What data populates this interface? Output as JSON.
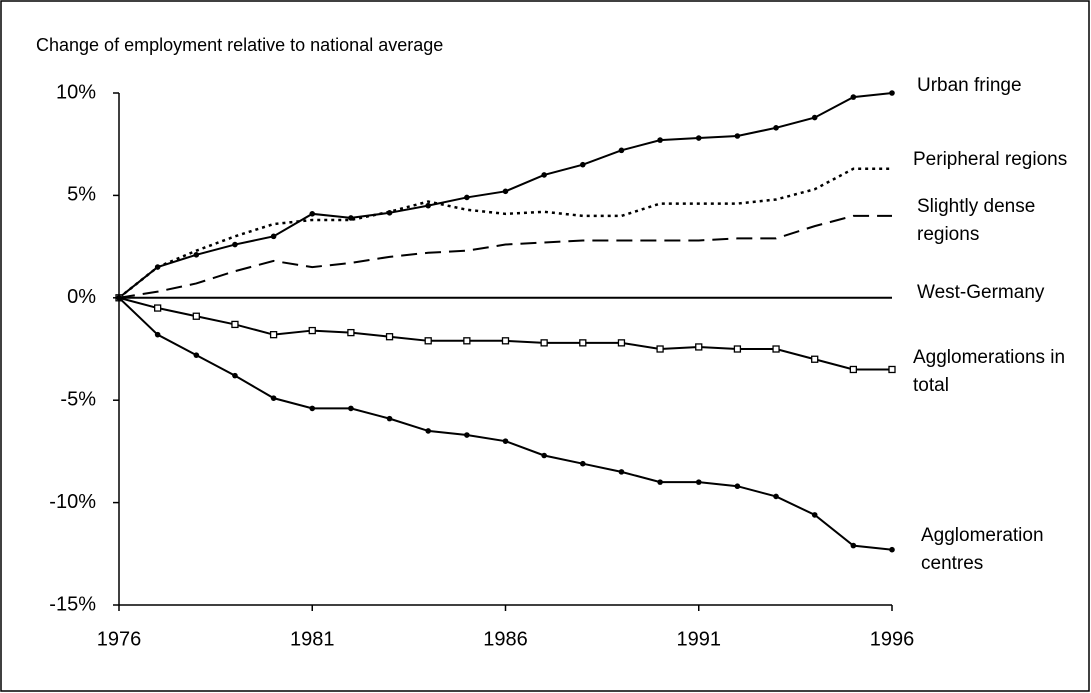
{
  "chart_data": {
    "type": "line",
    "y_label": "Change of employment relative to national average",
    "x": [
      1976,
      1977,
      1978,
      1979,
      1980,
      1981,
      1982,
      1983,
      1984,
      1985,
      1986,
      1987,
      1988,
      1989,
      1990,
      1991,
      1992,
      1993,
      1994,
      1995,
      1996
    ],
    "xlim": [
      1976,
      1996
    ],
    "xticks": [
      1976,
      1981,
      1986,
      1991,
      1996
    ],
    "ylim": [
      -15,
      10
    ],
    "yticks": [
      {
        "value": -15,
        "label": "-15%"
      },
      {
        "value": -10,
        "label": "-10%"
      },
      {
        "value": -5,
        "label": "-5%"
      },
      {
        "value": 0,
        "label": "0%"
      },
      {
        "value": 5,
        "label": "5%"
      },
      {
        "value": 10,
        "label": "10%"
      }
    ],
    "series": [
      {
        "name": "Urban fringe",
        "color": "#000000",
        "dash": "solid",
        "marker": "circle",
        "values": [
          0,
          1.5,
          2.1,
          2.6,
          3.0,
          4.1,
          3.9,
          4.15,
          4.5,
          4.9,
          5.2,
          6.0,
          6.5,
          7.2,
          7.7,
          7.8,
          7.9,
          8.3,
          8.8,
          9.8,
          10.0
        ]
      },
      {
        "name": "Peripheral regions",
        "color": "#000000",
        "dash": "dotted",
        "marker": "none",
        "values": [
          0,
          1.5,
          2.3,
          3.0,
          3.6,
          3.8,
          3.8,
          4.2,
          4.7,
          4.3,
          4.1,
          4.2,
          4.0,
          4.0,
          4.6,
          4.6,
          4.6,
          4.8,
          5.3,
          6.3,
          6.3
        ]
      },
      {
        "name": "Slightly dense regions",
        "color": "#000000",
        "dash": "dashed",
        "marker": "none",
        "values": [
          0,
          0.3,
          0.7,
          1.3,
          1.8,
          1.5,
          1.7,
          2.0,
          2.2,
          2.3,
          2.6,
          2.7,
          2.8,
          2.8,
          2.8,
          2.8,
          2.9,
          2.9,
          3.5,
          4.0,
          4.0
        ]
      },
      {
        "name": "West-Germany",
        "color": "#000000",
        "dash": "solid",
        "marker": "none",
        "values": [
          0,
          0,
          0,
          0,
          0,
          0,
          0,
          0,
          0,
          0,
          0,
          0,
          0,
          0,
          0,
          0,
          0,
          0,
          0,
          0,
          0
        ]
      },
      {
        "name": "Agglomerations in total",
        "color": "#000000",
        "dash": "solid",
        "marker": "square",
        "values": [
          0,
          -0.5,
          -0.9,
          -1.3,
          -1.8,
          -1.6,
          -1.7,
          -1.9,
          -2.1,
          -2.1,
          -2.1,
          -2.2,
          -2.2,
          -2.2,
          -2.5,
          -2.4,
          -2.5,
          -2.5,
          -3.0,
          -3.5,
          -3.5
        ]
      },
      {
        "name": "Agglomeration centres",
        "color": "#000000",
        "dash": "solid",
        "marker": "circle",
        "values": [
          0,
          -1.8,
          -2.8,
          -3.8,
          -4.9,
          -5.4,
          -5.4,
          -5.9,
          -6.5,
          -6.7,
          -7.0,
          -7.7,
          -8.1,
          -8.5,
          -9.0,
          -9.0,
          -9.2,
          -9.7,
          -10.6,
          -12.1,
          -12.3
        ]
      }
    ]
  }
}
